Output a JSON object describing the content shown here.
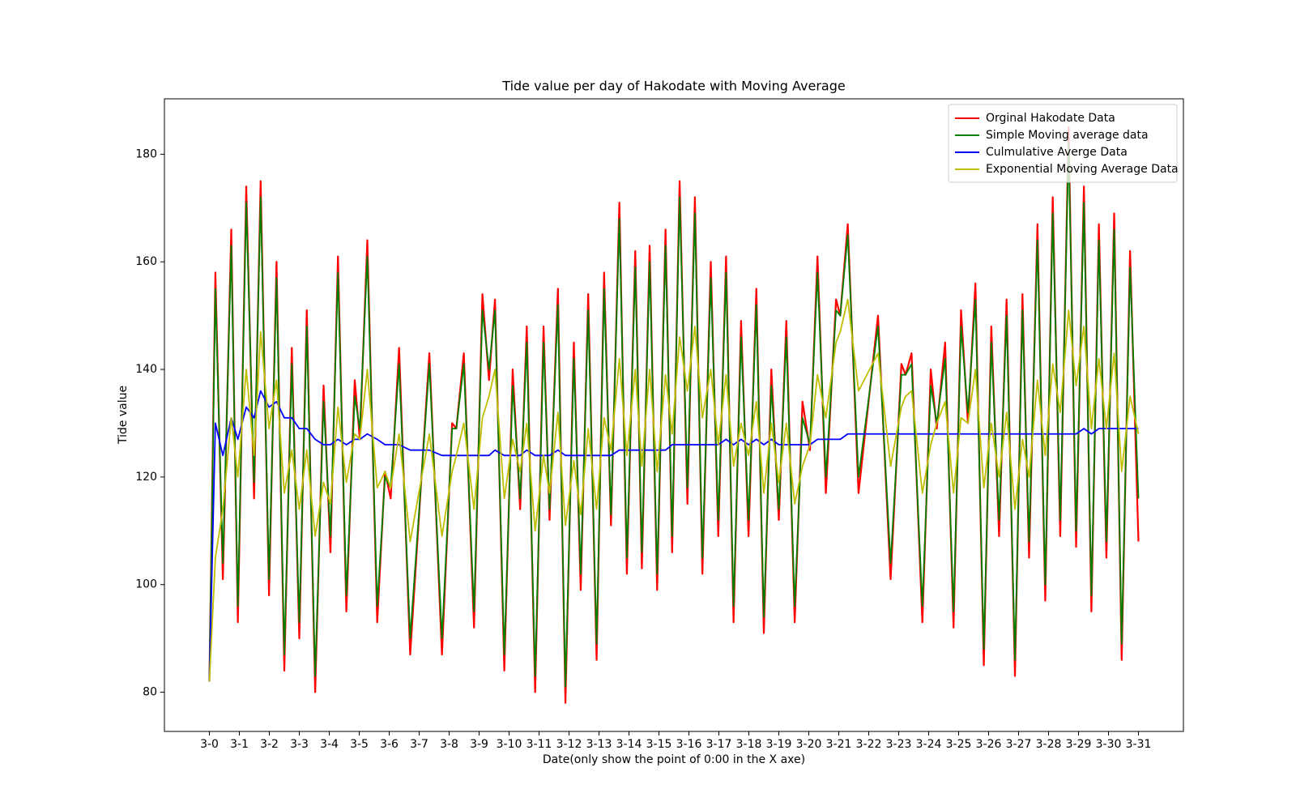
{
  "chart_data": {
    "type": "line",
    "title": "Tide value per day of Hakodate with Moving Average",
    "x_label": "Date(only show the point of 0:00 in the X axe)",
    "y_label": "Tide value",
    "legend": "upper right",
    "xlim": [
      -1.5,
      32.5
    ],
    "ylim": [
      72.7,
      190.3
    ],
    "xticks": [
      {
        "value": 0,
        "label": "3-0"
      },
      {
        "value": 1,
        "label": "3-1"
      },
      {
        "value": 2,
        "label": "3-2"
      },
      {
        "value": 3,
        "label": "3-3"
      },
      {
        "value": 4,
        "label": "3-4"
      },
      {
        "value": 5,
        "label": "3-5"
      },
      {
        "value": 6,
        "label": "3-6"
      },
      {
        "value": 7,
        "label": "3-7"
      },
      {
        "value": 8,
        "label": "3-8"
      },
      {
        "value": 9,
        "label": "3-9"
      },
      {
        "value": 10,
        "label": "3-10"
      },
      {
        "value": 11,
        "label": "3-11"
      },
      {
        "value": 12,
        "label": "3-12"
      },
      {
        "value": 13,
        "label": "3-13"
      },
      {
        "value": 14,
        "label": "3-14"
      },
      {
        "value": 15,
        "label": "3-15"
      },
      {
        "value": 16,
        "label": "3-16"
      },
      {
        "value": 17,
        "label": "3-17"
      },
      {
        "value": 18,
        "label": "3-18"
      },
      {
        "value": 19,
        "label": "3-19"
      },
      {
        "value": 20,
        "label": "3-20"
      },
      {
        "value": 21,
        "label": "3-21"
      },
      {
        "value": 22,
        "label": "3-22"
      },
      {
        "value": 23,
        "label": "3-23"
      },
      {
        "value": 24,
        "label": "3-24"
      },
      {
        "value": 25,
        "label": "3-25"
      },
      {
        "value": 26,
        "label": "3-26"
      },
      {
        "value": 27,
        "label": "3-27"
      },
      {
        "value": 28,
        "label": "3-28"
      },
      {
        "value": 29,
        "label": "3-29"
      },
      {
        "value": 30,
        "label": "3-30"
      },
      {
        "value": 31,
        "label": "3-31"
      }
    ],
    "yticks": [
      80,
      100,
      120,
      140,
      160,
      180
    ],
    "x": [
      0,
      0.2,
      0.45,
      0.73,
      0.95,
      1.23,
      1.49,
      1.71,
      1.99,
      2.24,
      2.5,
      2.75,
      3.0,
      3.25,
      3.53,
      3.81,
      4.04,
      4.29,
      4.57,
      4.85,
      5.02,
      5.27,
      5.6,
      5.86,
      6.05,
      6.33,
      6.7,
      7.34,
      7.76,
      8.1,
      8.24,
      8.49,
      8.83,
      9.11,
      9.33,
      9.53,
      9.84,
      10.12,
      10.37,
      10.59,
      10.87,
      11.15,
      11.35,
      11.63,
      11.88,
      12.16,
      12.39,
      12.64,
      12.92,
      13.17,
      13.4,
      13.68,
      13.93,
      14.21,
      14.43,
      14.69,
      14.94,
      15.22,
      15.44,
      15.69,
      15.95,
      16.2,
      16.45,
      16.73,
      16.98,
      17.24,
      17.49,
      17.74,
      17.99,
      18.25,
      18.5,
      18.75,
      19.0,
      19.25,
      19.53,
      19.79,
      20.04,
      20.29,
      20.57,
      20.91,
      21.05,
      21.3,
      21.66,
      22.31,
      22.73,
      23.09,
      23.23,
      23.43,
      23.79,
      24.07,
      24.27,
      24.55,
      24.83,
      25.08,
      25.31,
      25.56,
      25.84,
      26.09,
      26.35,
      26.6,
      26.88,
      27.13,
      27.35,
      27.63,
      27.89,
      28.14,
      28.39,
      28.67,
      28.92,
      29.18,
      29.43,
      29.68,
      29.93,
      30.19,
      30.44,
      30.72,
      31.0
    ],
    "series": [
      {
        "name": "Orginal Hakodate Data",
        "color": "#ff0000",
        "width": 2.2,
        "values": [
          82,
          158,
          101,
          166,
          93,
          174,
          116,
          175,
          98,
          160,
          84,
          144,
          90,
          151,
          80,
          137,
          106,
          161,
          95,
          138,
          127,
          164,
          93,
          121,
          116,
          144,
          87,
          143,
          87,
          130,
          129,
          143,
          92,
          154,
          138,
          153,
          84,
          140,
          114,
          148,
          80,
          148,
          112,
          155,
          78,
          145,
          99,
          154,
          86,
          158,
          111,
          171,
          102,
          162,
          103,
          163,
          99,
          166,
          106,
          175,
          115,
          172,
          102,
          160,
          109,
          161,
          93,
          149,
          109,
          155,
          91,
          140,
          112,
          149,
          93,
          134,
          125,
          161,
          117,
          153,
          150,
          167,
          117,
          150,
          101,
          141,
          139,
          143,
          93,
          140,
          129,
          145,
          92,
          151,
          130,
          156,
          85,
          148,
          109,
          153,
          83,
          154,
          105,
          167,
          97,
          172,
          109,
          185,
          107,
          174,
          95,
          167,
          105,
          169,
          86,
          162,
          108
        ]
      },
      {
        "name": "Simple Moving average data",
        "color": "#008000",
        "width": 1.8,
        "values": [
          82,
          155,
          104,
          163,
          96,
          171,
          119,
          172,
          101,
          157,
          87,
          141,
          93,
          148,
          83,
          134,
          109,
          158,
          98,
          135,
          129,
          161,
          96,
          120,
          118,
          141,
          90,
          141,
          90,
          129,
          129,
          141,
          95,
          151,
          140,
          151,
          87,
          137,
          116,
          145,
          83,
          145,
          114,
          152,
          81,
          142,
          102,
          151,
          89,
          155,
          113,
          168,
          105,
          159,
          106,
          160,
          102,
          163,
          109,
          172,
          118,
          169,
          105,
          157,
          112,
          158,
          96,
          146,
          112,
          152,
          94,
          137,
          114,
          146,
          96,
          131,
          126,
          158,
          120,
          151,
          150,
          165,
          120,
          148,
          104,
          139,
          139,
          141,
          96,
          137,
          130,
          142,
          95,
          148,
          132,
          153,
          88,
          145,
          112,
          150,
          86,
          151,
          108,
          164,
          100,
          169,
          112,
          182,
          110,
          171,
          98,
          164,
          108,
          166,
          89,
          159,
          116
        ]
      },
      {
        "name": "Culmulative Averge Data",
        "color": "#0000ff",
        "width": 1.8,
        "values": [
          82,
          130,
          124,
          131,
          127,
          133,
          131,
          136,
          133,
          134,
          131,
          131,
          129,
          129,
          127,
          126,
          126,
          127,
          126,
          127,
          127,
          128,
          127,
          126,
          126,
          126,
          125,
          125,
          124,
          124,
          124,
          124,
          124,
          124,
          124,
          125,
          124,
          124,
          124,
          125,
          124,
          124,
          124,
          125,
          124,
          124,
          124,
          124,
          124,
          124,
          124,
          125,
          125,
          125,
          125,
          125,
          125,
          125,
          126,
          126,
          126,
          126,
          126,
          126,
          126,
          127,
          126,
          127,
          126,
          127,
          126,
          127,
          126,
          126,
          126,
          126,
          126,
          127,
          127,
          127,
          127,
          128,
          128,
          128,
          128,
          128,
          128,
          128,
          128,
          128,
          128,
          128,
          128,
          128,
          128,
          128,
          128,
          128,
          128,
          128,
          128,
          128,
          128,
          128,
          128,
          128,
          128,
          128,
          128,
          129,
          128,
          129,
          129,
          129,
          129,
          129,
          129
        ]
      },
      {
        "name": "Exponential Moving Average Data",
        "color": "#bfbf00",
        "width": 1.8,
        "values": [
          82,
          105,
          114,
          131,
          120,
          140,
          124,
          147,
          129,
          138,
          117,
          125,
          114,
          125,
          109,
          119,
          115,
          133,
          119,
          128,
          127,
          140,
          118,
          121,
          118,
          128,
          108,
          128,
          109,
          121,
          124,
          130,
          114,
          131,
          135,
          140,
          116,
          127,
          121,
          130,
          110,
          124,
          117,
          132,
          111,
          123,
          113,
          129,
          114,
          131,
          125,
          142,
          124,
          140,
          122,
          140,
          121,
          139,
          128,
          146,
          136,
          148,
          131,
          140,
          126,
          139,
          122,
          130,
          124,
          134,
          117,
          130,
          119,
          130,
          115,
          122,
          126,
          139,
          131,
          145,
          147,
          153,
          136,
          143,
          122,
          133,
          135,
          136,
          117,
          126,
          130,
          134,
          117,
          131,
          130,
          140,
          118,
          130,
          120,
          132,
          114,
          127,
          120,
          138,
          124,
          141,
          132,
          151,
          137,
          148,
          129,
          142,
          129,
          143,
          121,
          135,
          128
        ]
      }
    ]
  }
}
